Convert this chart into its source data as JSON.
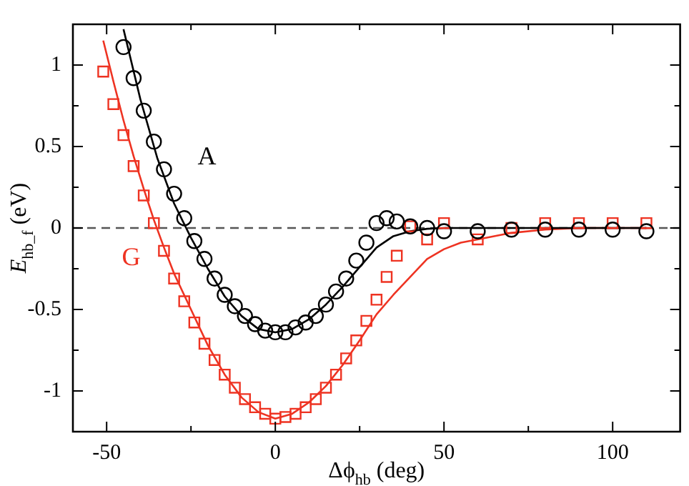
{
  "chart_data": {
    "type": "scatter",
    "xlabel": "Δϕ$_{hb}$ (deg)",
    "ylabel": "E$_{hb_f}$ (eV)",
    "xlim": [
      -60,
      120
    ],
    "xticks": [
      -50,
      {
        "value": -25,
        "label": null
      },
      0,
      {
        "value": 25,
        "label": null
      },
      50,
      {
        "value": 75,
        "label": null
      },
      100
    ],
    "ylim": [
      -1.25,
      1.25
    ],
    "yticks": [
      {
        "value": -1.25,
        "label": null
      },
      -1,
      {
        "value": -0.75,
        "label": null
      },
      -0.5,
      {
        "value": -0.25,
        "label": null
      },
      0,
      {
        "value": 0.25,
        "label": null
      },
      0.5,
      {
        "value": 0.75,
        "label": null
      },
      1
    ],
    "grid": false,
    "legend": false,
    "series": [
      {
        "type": "scatter",
        "name": "A",
        "marker": "circle",
        "color": "#000000",
        "x": [
          -45,
          -42,
          -39,
          -36,
          -33,
          -30,
          -27,
          -24,
          -21,
          -18,
          -15,
          -12,
          -9,
          -6,
          -3,
          0,
          3,
          6,
          9,
          12,
          15,
          18,
          21,
          24,
          27,
          30,
          33,
          36,
          40,
          45,
          50,
          60,
          70,
          80,
          90,
          100,
          110
        ],
        "values": [
          1.11,
          0.92,
          0.72,
          0.53,
          0.36,
          0.21,
          0.06,
          -0.08,
          -0.19,
          -0.31,
          -0.41,
          -0.48,
          -0.54,
          -0.59,
          -0.63,
          -0.64,
          -0.64,
          -0.61,
          -0.58,
          -0.54,
          -0.47,
          -0.39,
          -0.31,
          -0.2,
          -0.09,
          0.03,
          0.06,
          0.04,
          0.01,
          0,
          -0.02,
          -0.02,
          -0.01,
          -0.01,
          -0.01,
          -0.01,
          -0.02
        ]
      },
      {
        "type": "scatter",
        "name": "G",
        "marker": "square",
        "color": "#ee3322",
        "x": [
          -51,
          -48,
          -45,
          -42,
          -39,
          -36,
          -33,
          -30,
          -27,
          -24,
          -21,
          -18,
          -15,
          -12,
          -9,
          -6,
          -3,
          0,
          3,
          6,
          9,
          12,
          15,
          18,
          21,
          24,
          27,
          30,
          33,
          36,
          40,
          45,
          50,
          60,
          70,
          80,
          90,
          100,
          110
        ],
        "values": [
          0.96,
          0.76,
          0.57,
          0.38,
          0.2,
          0.03,
          -0.14,
          -0.31,
          -0.45,
          -0.58,
          -0.71,
          -0.81,
          -0.9,
          -0.98,
          -1.05,
          -1.1,
          -1.14,
          -1.17,
          -1.16,
          -1.14,
          -1.1,
          -1.05,
          -0.98,
          -0.9,
          -0.8,
          -0.69,
          -0.57,
          -0.44,
          -0.3,
          -0.17,
          0.01,
          -0.07,
          0.03,
          -0.07,
          0,
          0.03,
          0.03,
          0.03,
          0.03
        ]
      },
      {
        "type": "line",
        "marker": "none",
        "color": "#000000",
        "x": [
          -45,
          -40,
          -35,
          -30,
          -25,
          -20,
          -15,
          -10,
          -5,
          0,
          5,
          10,
          15,
          20,
          25,
          30,
          35,
          40,
          45,
          50,
          60,
          80,
          110
        ],
        "values": [
          1.22,
          0.79,
          0.43,
          0.15,
          -0.06,
          -0.25,
          -0.42,
          -0.54,
          -0.62,
          -0.64,
          -0.62,
          -0.56,
          -0.47,
          -0.36,
          -0.24,
          -0.12,
          -0.05,
          -0.02,
          -0.005,
          0,
          0,
          0,
          0
        ]
      },
      {
        "type": "line",
        "marker": "none",
        "color": "#ee3322",
        "x": [
          -51,
          -48,
          -45,
          -42,
          -39,
          -36,
          -33,
          -30,
          -25,
          -20,
          -15,
          -10,
          -5,
          0,
          5,
          10,
          15,
          20,
          25,
          30,
          35,
          40,
          45,
          50,
          55,
          60,
          70,
          80,
          90,
          110
        ],
        "values": [
          1.15,
          0.9,
          0.66,
          0.44,
          0.24,
          0.05,
          -0.12,
          -0.28,
          -0.5,
          -0.72,
          -0.9,
          -1.04,
          -1.13,
          -1.17,
          -1.14,
          -1.07,
          -0.97,
          -0.84,
          -0.69,
          -0.53,
          -0.41,
          -0.3,
          -0.19,
          -0.13,
          -0.09,
          -0.07,
          -0.03,
          -0.01,
          0,
          0
        ]
      }
    ],
    "ref_lines": [
      {
        "axis": "y",
        "value": 0,
        "color": "#555555",
        "line_style": "dashed"
      }
    ]
  }
}
